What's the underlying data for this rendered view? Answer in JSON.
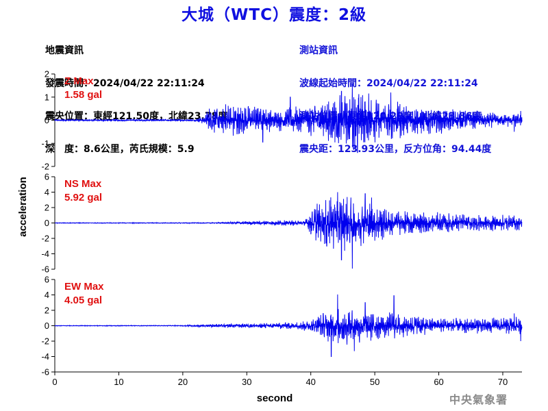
{
  "header": {
    "title": "大城（WTC）震度：2級"
  },
  "quake_info": {
    "heading": "地震資訊",
    "time": "發震時間：2024/04/22 22:11:24",
    "epicenter": "震央位置：東經121.50度，北緯23.78度",
    "depth_mag": "深　度：8.6公里，芮氏規模：5.9"
  },
  "station_info": {
    "heading": "測站資訊",
    "wave_start": "波線起始時間：2024/04/22 22:11:24",
    "location": "測站位置：東經120.29度，北緯23.86度",
    "distance": "震央距：123.93公里，反方位角：94.44度"
  },
  "credit": "中央氣象署",
  "colors": {
    "trace": "#0000ee",
    "max_label": "#e01010",
    "title": "#1010e0"
  },
  "chart_data": {
    "type": "line",
    "xlabel": "second",
    "ylabel": "acceleration",
    "xlim": [
      0,
      73
    ],
    "xticks": [
      0,
      10,
      20,
      30,
      40,
      50,
      60,
      70
    ],
    "panels": [
      {
        "name": "Z",
        "max_title": "Z Max",
        "max_value": "1.58 gal",
        "ylim": [
          -2,
          2
        ],
        "yticks": [
          -2,
          -1,
          0,
          1,
          2
        ],
        "envelope": [
          [
            0,
            0.04
          ],
          [
            22,
            0.05
          ],
          [
            23.5,
            0.2
          ],
          [
            24,
            0.6
          ],
          [
            28,
            0.8
          ],
          [
            32,
            0.6
          ],
          [
            35,
            0.5
          ],
          [
            40,
            0.7
          ],
          [
            45,
            1.2
          ],
          [
            48,
            1.4
          ],
          [
            50,
            1.0
          ],
          [
            55,
            0.8
          ],
          [
            60,
            0.6
          ],
          [
            65,
            0.4
          ],
          [
            70,
            0.3
          ],
          [
            73,
            0.3
          ]
        ],
        "peaks": [
          [
            46.5,
            1.58
          ],
          [
            47.3,
            -1.4
          ],
          [
            44.8,
            1.25
          ],
          [
            52.5,
            1.2
          ],
          [
            36.8,
            1.0
          ],
          [
            32.5,
            -0.95
          ],
          [
            72.8,
            0.4
          ],
          [
            71.8,
            -0.5
          ]
        ]
      },
      {
        "name": "NS",
        "max_title": "NS Max",
        "max_value": "5.92 gal",
        "ylim": [
          -6,
          6
        ],
        "yticks": [
          -6,
          -4,
          -2,
          0,
          2,
          4,
          6
        ],
        "envelope": [
          [
            0,
            0.04
          ],
          [
            25,
            0.06
          ],
          [
            30,
            0.25
          ],
          [
            35,
            0.35
          ],
          [
            39,
            0.4
          ],
          [
            39.5,
            1.0
          ],
          [
            40,
            2.0
          ],
          [
            43,
            3.5
          ],
          [
            45,
            3.8
          ],
          [
            47,
            3.2
          ],
          [
            50,
            2.8
          ],
          [
            53,
            1.7
          ],
          [
            60,
            1.4
          ],
          [
            65,
            1.2
          ],
          [
            73,
            1.0
          ]
        ],
        "peaks": [
          [
            44.2,
            4.0
          ],
          [
            44.8,
            -4.8
          ],
          [
            46.5,
            -5.92
          ],
          [
            48.5,
            3.8
          ],
          [
            49.5,
            3.3
          ],
          [
            41,
            2.5
          ],
          [
            42.5,
            -3.0
          ]
        ]
      },
      {
        "name": "EW",
        "max_title": "EW Max",
        "max_value": "4.05 gal",
        "ylim": [
          -6,
          6
        ],
        "yticks": [
          -6,
          -4,
          -2,
          0,
          2,
          4,
          6
        ],
        "envelope": [
          [
            0,
            0.04
          ],
          [
            20,
            0.06
          ],
          [
            25,
            0.25
          ],
          [
            32,
            0.35
          ],
          [
            38,
            0.5
          ],
          [
            40,
            0.9
          ],
          [
            43,
            2.4
          ],
          [
            46,
            2.6
          ],
          [
            50,
            2.0
          ],
          [
            53,
            1.8
          ],
          [
            58,
            1.2
          ],
          [
            65,
            1.0
          ],
          [
            70,
            1.1
          ],
          [
            73,
            1.3
          ]
        ],
        "peaks": [
          [
            44.2,
            4.05
          ],
          [
            43.2,
            -4.0
          ],
          [
            46.8,
            -3.3
          ],
          [
            53.0,
            3.9
          ],
          [
            48.5,
            3.0
          ],
          [
            72.8,
            -2.0
          ],
          [
            71.8,
            1.6
          ]
        ]
      }
    ]
  }
}
